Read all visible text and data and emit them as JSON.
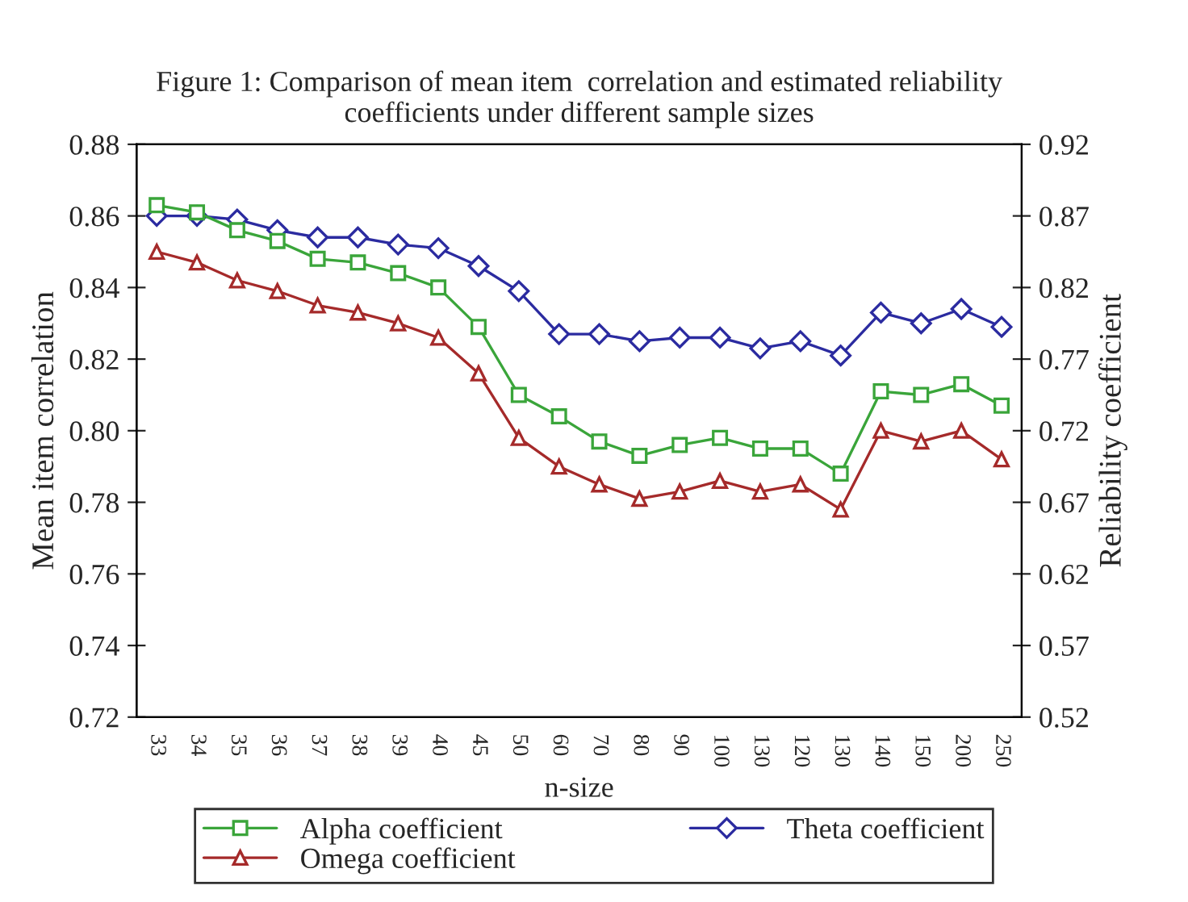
{
  "chart_data": {
    "type": "line",
    "title": "Figure 1: Comparison of mean item  correlation and estimated reliability\ncoefficients under different sample sizes",
    "xlabel": "n-size",
    "ylabel": "Mean item correlation",
    "y2label": "Reliability coefficient",
    "categories": [
      "33",
      "34",
      "35",
      "36",
      "37",
      "38",
      "39",
      "40",
      "45",
      "50",
      "60",
      "70",
      "80",
      "90",
      "100",
      "130",
      "120",
      "130",
      "140",
      "150",
      "200",
      "250"
    ],
    "series": [
      {
        "name": "Alpha coefficient",
        "color": "#3aa53a",
        "marker": "square",
        "values": [
          0.863,
          0.861,
          0.856,
          0.853,
          0.848,
          0.847,
          0.844,
          0.84,
          0.829,
          0.81,
          0.804,
          0.797,
          0.793,
          0.796,
          0.798,
          0.795,
          0.795,
          0.788,
          0.811,
          0.81,
          0.813,
          0.807
        ]
      },
      {
        "name": "Omega coefficient",
        "color": "#a52a2a",
        "marker": "triangle",
        "values": [
          0.85,
          0.847,
          0.842,
          0.839,
          0.835,
          0.833,
          0.83,
          0.826,
          0.816,
          0.798,
          0.79,
          0.785,
          0.781,
          0.783,
          0.786,
          0.783,
          0.785,
          0.778,
          0.8,
          0.797,
          0.8,
          0.792
        ]
      },
      {
        "name": "Theta coefficient",
        "color": "#2b2ba0",
        "marker": "diamond",
        "values": [
          0.86,
          0.86,
          0.859,
          0.856,
          0.854,
          0.854,
          0.852,
          0.851,
          0.846,
          0.839,
          0.827,
          0.827,
          0.825,
          0.826,
          0.826,
          0.823,
          0.825,
          0.821,
          0.833,
          0.83,
          0.834,
          0.829
        ]
      }
    ],
    "ylim": [
      0.72,
      0.88
    ],
    "yticks": [
      {
        "value": 0.72,
        "label": "0.72"
      },
      {
        "value": 0.74,
        "label": "0.74"
      },
      {
        "value": 0.76,
        "label": "0.76"
      },
      {
        "value": 0.78,
        "label": "0.78"
      },
      {
        "value": 0.8,
        "label": "0.80"
      },
      {
        "value": 0.82,
        "label": "0.82"
      },
      {
        "value": 0.84,
        "label": "0.84"
      },
      {
        "value": 0.86,
        "label": "0.86"
      },
      {
        "value": 0.88,
        "label": "0.88"
      }
    ],
    "y2lim": [
      0.52,
      0.92
    ],
    "y2ticks": [
      {
        "value": 0.52,
        "label": "0.52"
      },
      {
        "value": 0.57,
        "label": "0.57"
      },
      {
        "value": 0.62,
        "label": "0.62"
      },
      {
        "value": 0.67,
        "label": "0.67"
      },
      {
        "value": 0.72,
        "label": "0.72"
      },
      {
        "value": 0.77,
        "label": "0.77"
      },
      {
        "value": 0.82,
        "label": "0.82"
      },
      {
        "value": 0.87,
        "label": "0.87"
      },
      {
        "value": 0.92,
        "label": "0.92"
      }
    ],
    "grid": false,
    "legend": "bottom",
    "line_style": "solid"
  }
}
